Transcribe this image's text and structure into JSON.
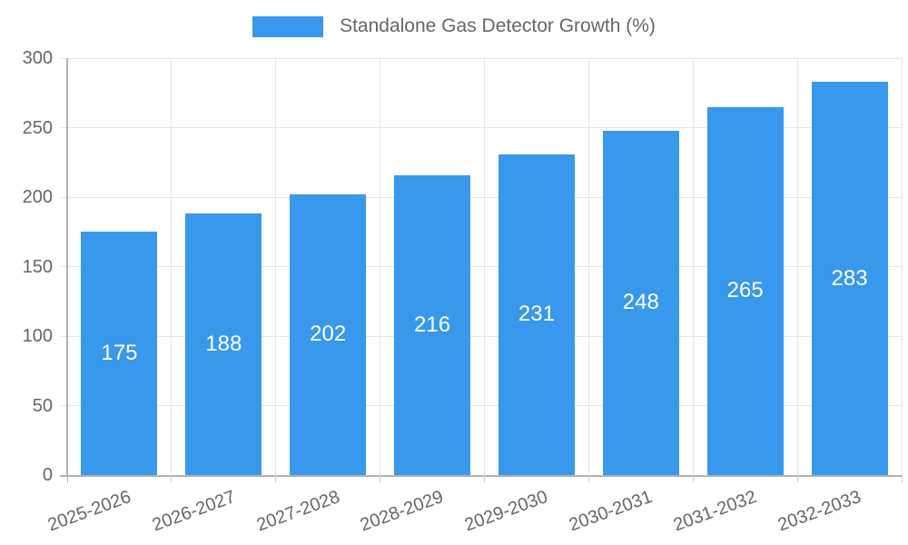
{
  "chart_data": {
    "type": "bar",
    "title": "",
    "legend_label": "Standalone Gas Detector Growth (%)",
    "legend_position": "top",
    "categories": [
      "2025-2026",
      "2026-2027",
      "2027-2028",
      "2028-2029",
      "2029-2030",
      "2030-2031",
      "2031-2032",
      "2032-2033"
    ],
    "values": [
      175,
      188,
      202,
      216,
      231,
      248,
      265,
      283
    ],
    "value_labels": [
      "175",
      "188",
      "202",
      "216",
      "231",
      "248",
      "265",
      "283"
    ],
    "xlabel": "",
    "ylabel": "",
    "ylim": [
      0,
      300
    ],
    "yticks": [
      0,
      50,
      100,
      150,
      200,
      250,
      300
    ],
    "ytick_labels": [
      "0",
      "50",
      "100",
      "150",
      "200",
      "250",
      "300"
    ],
    "grid": true,
    "x_label_rotation_deg": -20,
    "colors": {
      "bar": "#3898EC",
      "value_label": "#FFFFFF",
      "legend_text": "#666666",
      "tick_label": "#666666",
      "grid_line": "#E6E6E6",
      "axis_line": "#B1B1B1",
      "tick_mark": "#CFCFCF",
      "background": "#FFFFFF"
    }
  }
}
